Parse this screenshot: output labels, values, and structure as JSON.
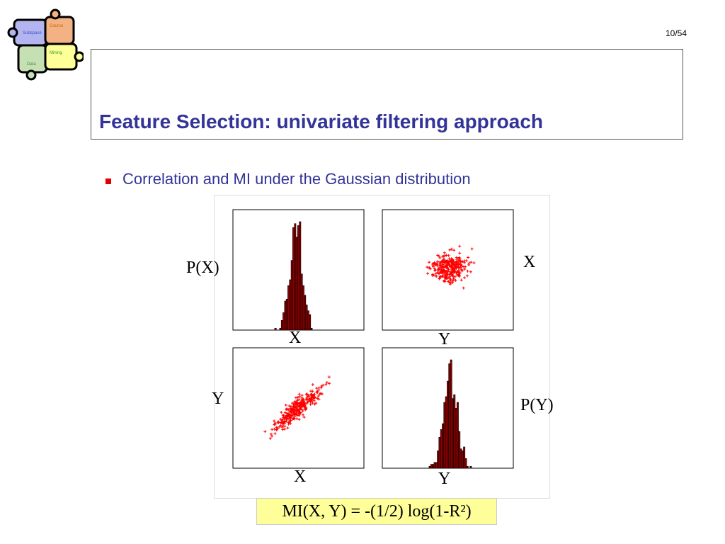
{
  "logo": {
    "pieces": [
      "Subspace",
      "Course",
      "Mining",
      "Data"
    ]
  },
  "page_number": "10/54",
  "title": "Feature Selection: univariate filtering approach",
  "bullet": "Correlation and MI under the Gaussian distribution",
  "figure": {
    "labels": {
      "px": "P(X)",
      "tl_x": "X",
      "tr_y": "Y",
      "tr_x": "X",
      "bl_y": "Y",
      "bl_x": "X",
      "br_y": "Y",
      "py": "P(Y)"
    },
    "formula": "MI(X, Y) = -(1/2) log(1-R²)"
  }
}
